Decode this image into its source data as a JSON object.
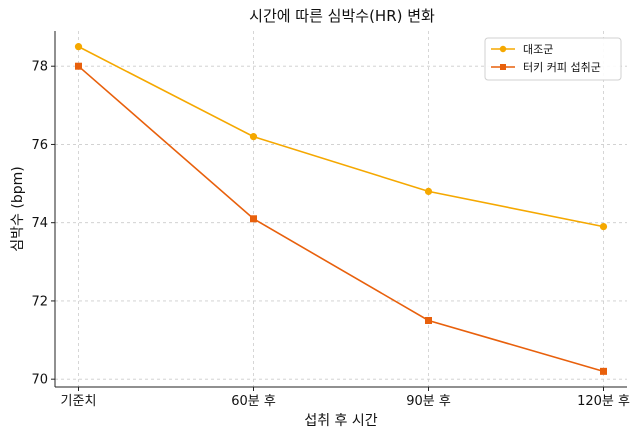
{
  "chart_data": {
    "type": "line",
    "title": "시간에 따른 심박수(HR) 변화",
    "xlabel": "섭취 후 시간",
    "ylabel": "심박수 (bpm)",
    "categories": [
      "기준치",
      "60분 후",
      "90분 후",
      "120분 후"
    ],
    "ylim": [
      69.8,
      78.9
    ],
    "yticks": [
      70,
      72,
      74,
      76,
      78
    ],
    "grid": true,
    "legend_position": "top-right",
    "series": [
      {
        "name": "대조군",
        "values": [
          78.5,
          76.2,
          74.8,
          73.9
        ],
        "color": "#f5a800",
        "marker": "circle"
      },
      {
        "name": "터키 커피 섭취군",
        "values": [
          78.0,
          74.1,
          71.5,
          70.2
        ],
        "color": "#e8600c",
        "marker": "square"
      }
    ]
  }
}
